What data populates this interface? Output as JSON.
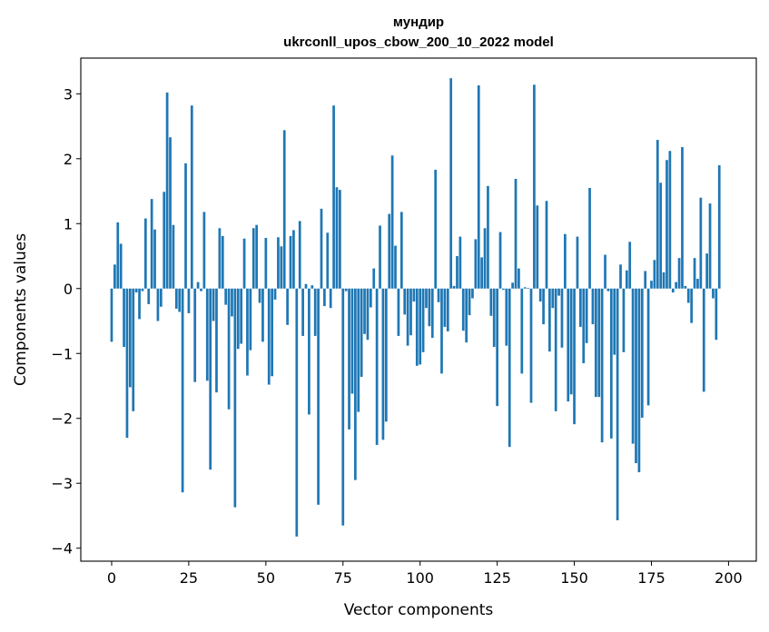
{
  "chart_data": {
    "type": "bar",
    "title": "мундир",
    "subtitle": "ukrconll_upos_cbow_200_10_2022 model",
    "xlabel": "Vector components",
    "ylabel": "Components values",
    "xlim": [
      -10,
      209
    ],
    "ylim": [
      -4.2,
      3.55
    ],
    "xticks": [
      0,
      25,
      50,
      75,
      100,
      125,
      150,
      175,
      200
    ],
    "yticks": [
      -4,
      -3,
      -2,
      -1,
      0,
      1,
      2,
      3
    ],
    "ytick_labels": [
      "−4",
      "−3",
      "−2",
      "−1",
      "0",
      "1",
      "2",
      "3"
    ],
    "color": "#1f77b4",
    "grid": false,
    "values": [
      -0.82,
      0.37,
      1.02,
      0.69,
      -0.9,
      -2.3,
      -1.52,
      -1.89,
      -0.06,
      -0.47,
      -0.04,
      1.08,
      -0.24,
      1.38,
      0.91,
      -0.5,
      -0.28,
      1.49,
      3.02,
      2.33,
      0.98,
      -0.31,
      -0.36,
      -3.14,
      1.93,
      -0.38,
      2.82,
      -1.44,
      0.1,
      -0.04,
      1.18,
      -1.42,
      -2.79,
      -0.5,
      -1.6,
      0.93,
      0.81,
      -0.25,
      -1.86,
      -0.43,
      -3.37,
      -0.93,
      -0.85,
      0.77,
      -1.34,
      -0.95,
      0.93,
      0.98,
      -0.22,
      -0.82,
      0.78,
      -1.48,
      -1.35,
      -0.17,
      0.79,
      0.65,
      2.44,
      -0.56,
      0.81,
      0.9,
      -3.82,
      1.04,
      -0.73,
      0.07,
      -1.94,
      0.05,
      -0.73,
      -3.33,
      1.23,
      -0.27,
      0.86,
      -0.3,
      2.82,
      1.56,
      1.52,
      -3.65,
      -0.04,
      -2.17,
      -1.62,
      -2.95,
      -1.9,
      -1.36,
      -0.7,
      -0.79,
      -0.29,
      0.31,
      -2.41,
      0.97,
      -2.33,
      -2.05,
      1.15,
      2.05,
      0.66,
      -0.73,
      1.18,
      -0.4,
      -0.88,
      -0.72,
      -0.2,
      -1.19,
      -1.17,
      -0.98,
      -0.3,
      -0.58,
      -0.76,
      1.83,
      -0.21,
      -1.31,
      -0.59,
      -0.66,
      3.24,
      0.04,
      0.5,
      0.8,
      -0.65,
      -0.83,
      -0.41,
      -0.15,
      0.76,
      3.13,
      0.48,
      0.93,
      1.58,
      -0.42,
      -0.9,
      -1.81,
      0.87,
      -0.02,
      -0.88,
      -2.44,
      0.09,
      1.69,
      0.31,
      -1.31,
      0.02,
      0.01,
      -1.76,
      3.14,
      1.28,
      -0.2,
      -0.55,
      1.35,
      -0.97,
      -0.3,
      -1.89,
      -0.11,
      -0.91,
      0.84,
      -1.74,
      -1.63,
      -2.09,
      0.8,
      -0.59,
      -1.15,
      -0.84,
      1.55,
      -0.55,
      -1.67,
      -1.67,
      -2.37,
      0.52,
      -0.04,
      -2.31,
      -1.02,
      -3.57,
      0.37,
      -0.98,
      0.28,
      0.72,
      -2.39,
      -2.69,
      -2.83,
      -1.99,
      0.27,
      -1.8,
      0.12,
      0.44,
      2.29,
      1.63,
      0.25,
      1.98,
      2.12,
      -0.06,
      0.1,
      0.47,
      2.18,
      0.04,
      -0.22,
      -0.53,
      0.47,
      0.15,
      1.4,
      -1.59,
      0.54,
      1.31,
      -0.15,
      -0.79,
      1.9
    ]
  }
}
